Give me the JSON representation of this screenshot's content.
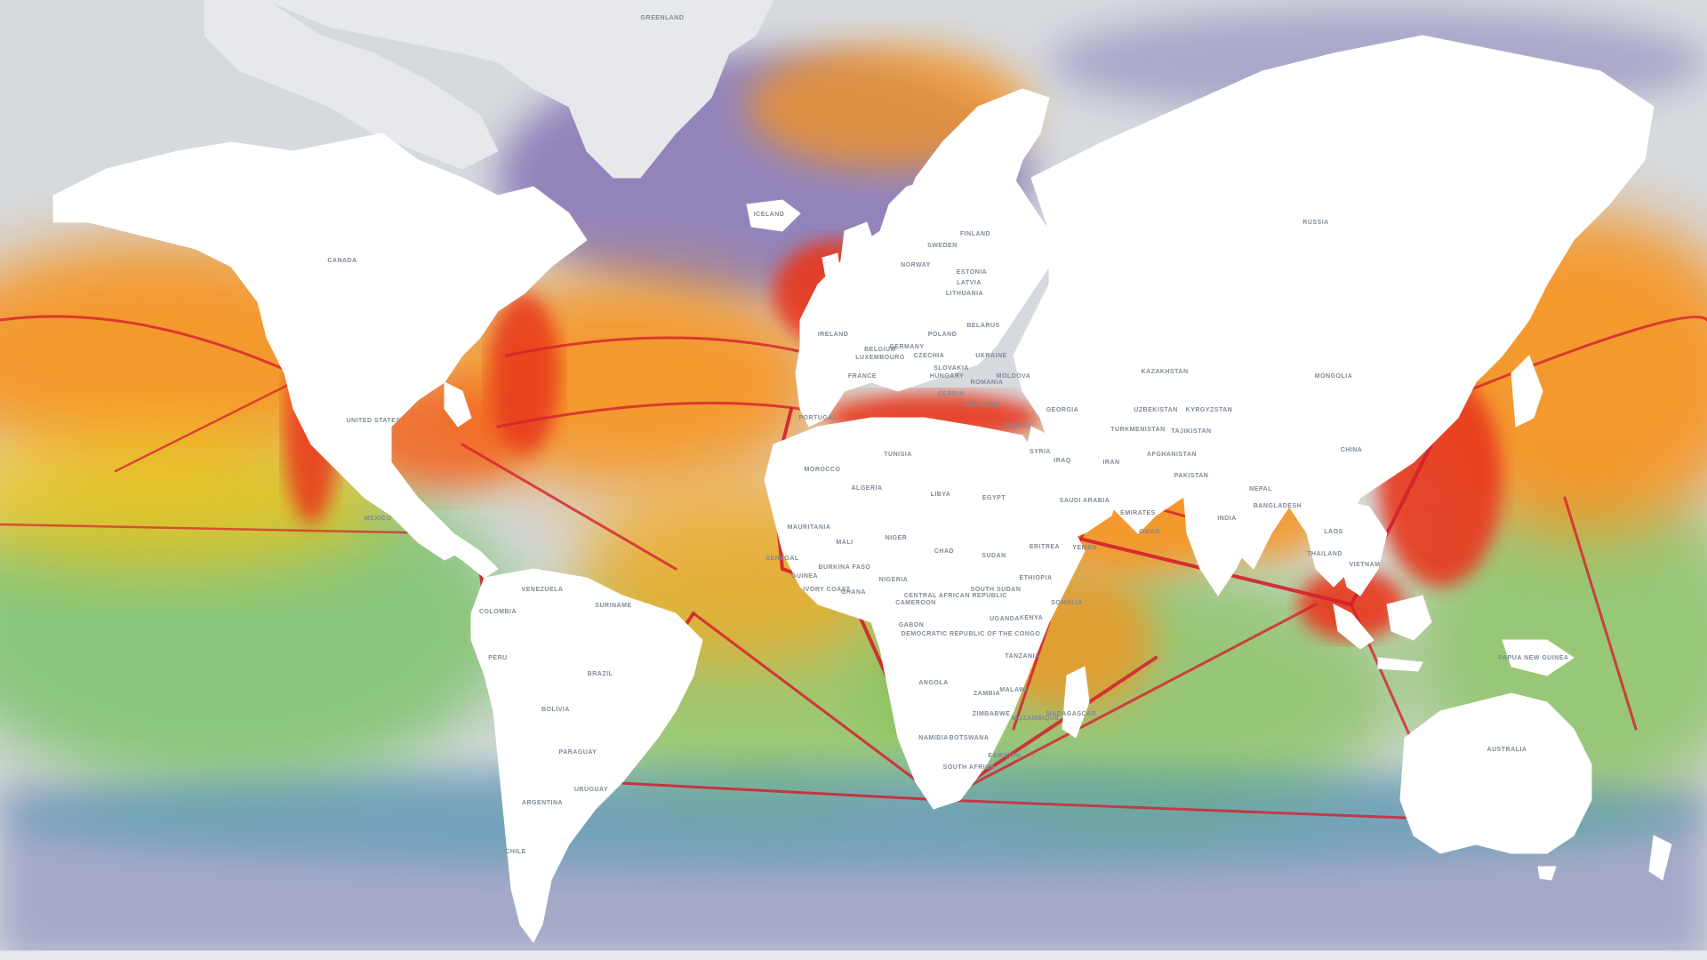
{
  "map": {
    "projection": "mercator",
    "theme": "shipping-density-heatmap",
    "colors": {
      "ocean_base": "#d6d9dd",
      "land": "#ffffff",
      "arctic_land": "#e6e8eb",
      "density_low": "#5b3fa0",
      "density_low_mid": "#3f8fb0",
      "density_mid": "#8cc43c",
      "density_mid_high": "#f5d020",
      "density_high": "#f7931e",
      "density_very_high": "#e8371c",
      "density_max": "#c8102e",
      "border": "#e2c4c4",
      "label": "#7f8a96"
    },
    "labels": [
      {
        "id": "greenland",
        "text": "GREENLAND"
      },
      {
        "id": "canada",
        "text": "CANADA"
      },
      {
        "id": "iceland",
        "text": "ICELAND"
      },
      {
        "id": "united-states",
        "text": "UNITED STATES"
      },
      {
        "id": "mexico",
        "text": "MEXICO"
      },
      {
        "id": "colombia",
        "text": "COLOMBIA"
      },
      {
        "id": "venezuela",
        "text": "VENEZUELA"
      },
      {
        "id": "suriname",
        "text": "SURINAME"
      },
      {
        "id": "peru",
        "text": "PERU"
      },
      {
        "id": "brazil",
        "text": "BRAZIL"
      },
      {
        "id": "bolivia",
        "text": "BOLIVIA"
      },
      {
        "id": "paraguay",
        "text": "PARAGUAY"
      },
      {
        "id": "uruguay",
        "text": "URUGUAY"
      },
      {
        "id": "argentina",
        "text": "ARGENTINA"
      },
      {
        "id": "chile",
        "text": "CHILE"
      },
      {
        "id": "russia",
        "text": "RUSSIA"
      },
      {
        "id": "finland",
        "text": "FINLAND"
      },
      {
        "id": "sweden",
        "text": "SWEDEN"
      },
      {
        "id": "norway",
        "text": "NORWAY"
      },
      {
        "id": "estonia",
        "text": "ESTONIA"
      },
      {
        "id": "latvia",
        "text": "LATVIA"
      },
      {
        "id": "lithuania",
        "text": "LITHUANIA"
      },
      {
        "id": "belarus",
        "text": "BELARUS"
      },
      {
        "id": "poland",
        "text": "POLAND"
      },
      {
        "id": "germany",
        "text": "GERMANY"
      },
      {
        "id": "ireland",
        "text": "IRELAND"
      },
      {
        "id": "belgium",
        "text": "BELGIUM"
      },
      {
        "id": "luxembourg",
        "text": "LUXEMBOURG"
      },
      {
        "id": "czechia",
        "text": "CZECHIA"
      },
      {
        "id": "slovakia",
        "text": "SLOVAKIA"
      },
      {
        "id": "ukraine",
        "text": "UKRAINE"
      },
      {
        "id": "moldova",
        "text": "MOLDOVA"
      },
      {
        "id": "hungary",
        "text": "HUNGARY"
      },
      {
        "id": "france",
        "text": "FRANCE"
      },
      {
        "id": "romania",
        "text": "ROMANIA"
      },
      {
        "id": "serbia",
        "text": "SERBIA"
      },
      {
        "id": "bulgaria",
        "text": "BULGARIA"
      },
      {
        "id": "georgia",
        "text": "GEORGIA"
      },
      {
        "id": "portugal",
        "text": "PORTUGAL"
      },
      {
        "id": "turkey",
        "text": "TURKEY"
      },
      {
        "id": "syria",
        "text": "SYRIA"
      },
      {
        "id": "iraq",
        "text": "IRAQ"
      },
      {
        "id": "iran",
        "text": "IRAN"
      },
      {
        "id": "turkmenistan",
        "text": "TURKMENISTAN"
      },
      {
        "id": "uzbekistan",
        "text": "UZBEKISTAN"
      },
      {
        "id": "kazakhstan",
        "text": "KAZAKHSTAN"
      },
      {
        "id": "kyrgyzstan",
        "text": "KYRGYZSTAN"
      },
      {
        "id": "tajikistan",
        "text": "TAJIKISTAN"
      },
      {
        "id": "afghanistan",
        "text": "AFGHANISTAN"
      },
      {
        "id": "pakistan",
        "text": "PAKISTAN"
      },
      {
        "id": "india",
        "text": "INDIA"
      },
      {
        "id": "nepal",
        "text": "NEPAL"
      },
      {
        "id": "bangladesh",
        "text": "BANGLADESH"
      },
      {
        "id": "mongolia",
        "text": "MONGOLIA"
      },
      {
        "id": "china",
        "text": "CHINA"
      },
      {
        "id": "laos",
        "text": "LAOS"
      },
      {
        "id": "thailand",
        "text": "THAILAND"
      },
      {
        "id": "vietnam",
        "text": "VIETNAM"
      },
      {
        "id": "morocco",
        "text": "MOROCCO"
      },
      {
        "id": "tunisia",
        "text": "TUNISIA"
      },
      {
        "id": "algeria",
        "text": "ALGERIA"
      },
      {
        "id": "libya",
        "text": "LIBYA"
      },
      {
        "id": "egypt",
        "text": "EGYPT"
      },
      {
        "id": "saudi-arabia",
        "text": "SAUDI ARABIA"
      },
      {
        "id": "emirates",
        "text": "EMIRATES"
      },
      {
        "id": "oman",
        "text": "OMAN"
      },
      {
        "id": "yemen",
        "text": "YEMEN"
      },
      {
        "id": "mauritania",
        "text": "MAURITANIA"
      },
      {
        "id": "mali",
        "text": "MALI"
      },
      {
        "id": "niger",
        "text": "NIGER"
      },
      {
        "id": "chad",
        "text": "CHAD"
      },
      {
        "id": "sudan",
        "text": "SUDAN"
      },
      {
        "id": "south-sudan",
        "text": "SOUTH SUDAN"
      },
      {
        "id": "eritrea",
        "text": "ERITREA"
      },
      {
        "id": "ethiopia",
        "text": "ETHIOPIA"
      },
      {
        "id": "senegal",
        "text": "SENEGAL"
      },
      {
        "id": "guinea",
        "text": "GUINEA"
      },
      {
        "id": "burkina-faso",
        "text": "BURKINA FASO"
      },
      {
        "id": "ivory-coast",
        "text": "IVORY COAST"
      },
      {
        "id": "ghana",
        "text": "GHANA"
      },
      {
        "id": "nigeria",
        "text": "NIGERIA"
      },
      {
        "id": "cameroon",
        "text": "CAMEROON"
      },
      {
        "id": "central-african-republic",
        "text": "CENTRAL AFRICAN REPUBLIC"
      },
      {
        "id": "gabon",
        "text": "GABON"
      },
      {
        "id": "democratic-republic-of-the-congo",
        "text": "DEMOCRATIC REPUBLIC OF THE CONGO"
      },
      {
        "id": "uganda",
        "text": "UGANDA"
      },
      {
        "id": "kenya",
        "text": "KENYA"
      },
      {
        "id": "somalia",
        "text": "SOMALIA"
      },
      {
        "id": "tanzania",
        "text": "TANZANIA"
      },
      {
        "id": "angola",
        "text": "ANGOLA"
      },
      {
        "id": "zambia",
        "text": "ZAMBIA"
      },
      {
        "id": "malawi",
        "text": "MALAWI"
      },
      {
        "id": "zimbabwe",
        "text": "ZIMBABWE"
      },
      {
        "id": "mozambique",
        "text": "MOZAMBIQUE"
      },
      {
        "id": "madagascar",
        "text": "MADAGASCAR"
      },
      {
        "id": "namibia",
        "text": "NAMIBIA"
      },
      {
        "id": "botswana",
        "text": "BOTSWANA"
      },
      {
        "id": "eswatini",
        "text": "ESWATINI"
      },
      {
        "id": "south-africa",
        "text": "SOUTH AFRICA"
      },
      {
        "id": "papua-new-guinea",
        "text": "PAPUA NEW GUINEA"
      },
      {
        "id": "australia",
        "text": "AUSTRALIA"
      }
    ]
  }
}
